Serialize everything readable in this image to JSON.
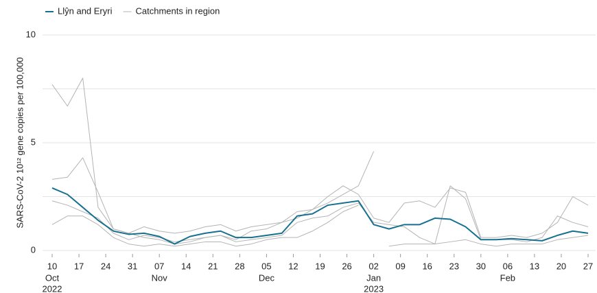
{
  "chart_data": {
    "type": "line",
    "y_label": "SARS-CoV-2 10¹² gene copies per 100,000",
    "x": [
      "2022-10-10",
      "2022-10-14",
      "2022-10-18",
      "2022-10-22",
      "2022-10-26",
      "2022-10-30",
      "2022-11-03",
      "2022-11-07",
      "2022-11-11",
      "2022-11-15",
      "2022-11-19",
      "2022-11-23",
      "2022-11-27",
      "2022-12-01",
      "2022-12-05",
      "2022-12-09",
      "2022-12-13",
      "2022-12-17",
      "2022-12-21",
      "2022-12-25",
      "2022-12-29",
      "2023-01-02",
      "2023-01-06",
      "2023-01-10",
      "2023-01-14",
      "2023-01-18",
      "2023-01-22",
      "2023-01-26",
      "2023-01-30",
      "2023-02-03",
      "2023-02-07",
      "2023-02-11",
      "2023-02-15",
      "2023-02-19",
      "2023-02-23",
      "2023-02-27"
    ],
    "series": [
      {
        "name": "Llŷn and Eryri",
        "color": "#17708f",
        "width": 2,
        "values": [
          2.9,
          2.6,
          2.0,
          1.4,
          0.9,
          0.75,
          0.8,
          0.65,
          0.3,
          0.65,
          0.8,
          0.9,
          0.6,
          0.6,
          0.7,
          0.8,
          1.6,
          1.7,
          2.1,
          2.2,
          2.3,
          1.2,
          1.0,
          1.2,
          1.2,
          1.5,
          1.45,
          1.1,
          0.5,
          0.5,
          0.55,
          0.5,
          0.45,
          0.7,
          0.9,
          0.8
        ]
      },
      {
        "name": "Catchments in region",
        "color": "#b3b3b3",
        "width": 1,
        "groups": [
          [
            7.7,
            6.7,
            8.0,
            2.0,
            1.0,
            0.8,
            0.6,
            0.5,
            0.3,
            0.4,
            0.6,
            0.7,
            0.5,
            0.9,
            1.0,
            1.3,
            1.8,
            1.9,
            2.2,
            2.6,
            3.0,
            4.6,
            null,
            null,
            null,
            null,
            null,
            null,
            null,
            null,
            null,
            null,
            null,
            null,
            null,
            null
          ],
          [
            3.3,
            3.4,
            4.3,
            2.7,
            1.0,
            0.8,
            1.1,
            0.9,
            0.8,
            0.9,
            1.1,
            1.2,
            0.9,
            1.1,
            1.2,
            1.3,
            1.5,
            1.9,
            2.5,
            3.0,
            2.6,
            1.5,
            1.3,
            2.2,
            2.3,
            2.0,
            2.9,
            2.7,
            0.6,
            0.6,
            0.7,
            0.6,
            0.8,
            1.3,
            2.5,
            2.1
          ],
          [
            2.3,
            2.1,
            1.8,
            1.5,
            0.8,
            0.5,
            0.7,
            0.6,
            0.4,
            0.5,
            0.6,
            0.7,
            0.4,
            0.5,
            0.6,
            0.7,
            1.3,
            1.5,
            1.6,
            2.0,
            2.2,
            1.3,
            1.2,
            1.1,
            0.6,
            0.3,
            3.0,
            2.4,
            0.5,
            0.5,
            0.5,
            0.4,
            0.6,
            1.6,
            1.3,
            1.1
          ],
          [
            1.2,
            1.6,
            1.6,
            1.2,
            0.6,
            0.3,
            0.2,
            0.3,
            0.2,
            0.3,
            0.4,
            0.4,
            0.2,
            0.3,
            0.5,
            0.6,
            0.6,
            0.9,
            1.3,
            1.8,
            2.1,
            null,
            0.2,
            0.3,
            0.3,
            0.3,
            0.4,
            0.5,
            0.3,
            0.2,
            0.3,
            0.3,
            0.3,
            0.5,
            0.6,
            0.7
          ]
        ]
      }
    ],
    "xlim": [
      "2022-10-10",
      "2023-02-27"
    ],
    "xticks": [
      {
        "value": "2022-10-10",
        "label": "10"
      },
      {
        "value": "2022-10-17",
        "label": "17"
      },
      {
        "value": "2022-10-24",
        "label": "24"
      },
      {
        "value": "2022-10-31",
        "label": "31"
      },
      {
        "value": "2022-11-07",
        "label": "07"
      },
      {
        "value": "2022-11-14",
        "label": "14"
      },
      {
        "value": "2022-11-21",
        "label": "21"
      },
      {
        "value": "2022-11-28",
        "label": "28"
      },
      {
        "value": "2022-12-05",
        "label": "05"
      },
      {
        "value": "2022-12-12",
        "label": "12"
      },
      {
        "value": "2022-12-19",
        "label": "19"
      },
      {
        "value": "2022-12-26",
        "label": "26"
      },
      {
        "value": "2023-01-02",
        "label": "02"
      },
      {
        "value": "2023-01-09",
        "label": "09"
      },
      {
        "value": "2023-01-16",
        "label": "16"
      },
      {
        "value": "2023-01-23",
        "label": "23"
      },
      {
        "value": "2023-01-30",
        "label": "30"
      },
      {
        "value": "2023-02-06",
        "label": "06"
      },
      {
        "value": "2023-02-13",
        "label": "13"
      },
      {
        "value": "2023-02-20",
        "label": "20"
      },
      {
        "value": "2023-02-27",
        "label": "27"
      }
    ],
    "xtick_months": [
      {
        "value": "2022-10-10",
        "label": "Oct"
      },
      {
        "value": "2022-11-07",
        "label": "Nov"
      },
      {
        "value": "2022-12-05",
        "label": "Dec"
      },
      {
        "value": "2023-01-02",
        "label": "Jan"
      },
      {
        "value": "2023-02-06",
        "label": "Feb"
      }
    ],
    "xtick_years": [
      {
        "value": "2022-10-10",
        "label": "2022"
      },
      {
        "value": "2023-01-02",
        "label": "2023"
      }
    ],
    "ylim": [
      0,
      10
    ],
    "yticks": [
      0,
      5,
      10
    ],
    "y_minor_grid": [
      2.5,
      7.5
    ],
    "grid": true,
    "legend": "top-left"
  }
}
